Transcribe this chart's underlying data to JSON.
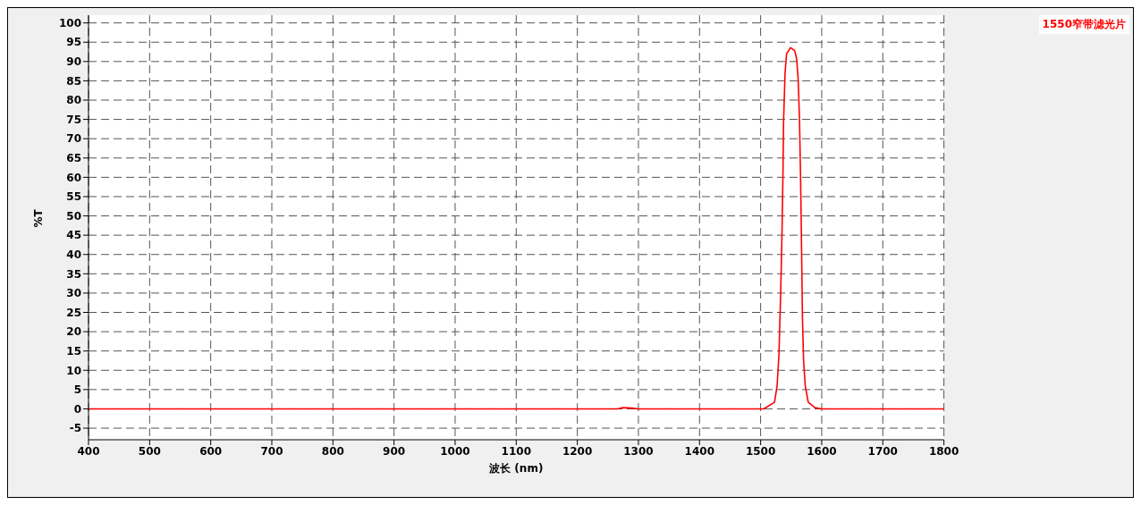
{
  "chart_data": {
    "type": "line",
    "xlabel": "波长 (nm)",
    "ylabel": "%T",
    "xlim": [
      400,
      1800
    ],
    "xticks": [
      400,
      500,
      600,
      700,
      800,
      900,
      1000,
      1100,
      1200,
      1300,
      1400,
      1500,
      1600,
      1700,
      1800
    ],
    "ylim": [
      -8,
      102
    ],
    "yticks": [
      -5,
      0,
      5,
      10,
      15,
      20,
      25,
      30,
      35,
      40,
      45,
      50,
      55,
      60,
      65,
      70,
      75,
      80,
      85,
      90,
      95,
      100
    ],
    "grid": true,
    "legend": "top right",
    "marker": "none",
    "line_style": "solid",
    "series": [
      {
        "name": "1550窄带滤光片",
        "color": "#ff0000",
        "x": [
          400,
          1265,
          1275,
          1290,
          1300,
          1505,
          1522.7,
          1527,
          1530,
          1533,
          1535,
          1536.5,
          1537.6,
          1540,
          1542.5,
          1549,
          1555.7,
          1559,
          1561.4,
          1563.7,
          1565.4,
          1566.7,
          1568.5,
          1570.3,
          1573,
          1578,
          1589,
          1600,
          1800
        ],
        "values": [
          0,
          0,
          0.3,
          0.2,
          0,
          0,
          1.7,
          6,
          14,
          31,
          45.5,
          60,
          74.6,
          87,
          92,
          93.6,
          92.8,
          90.7,
          85.6,
          74.6,
          60,
          45.5,
          23.6,
          12.6,
          6,
          1.7,
          0.3,
          0,
          0
        ]
      }
    ]
  }
}
